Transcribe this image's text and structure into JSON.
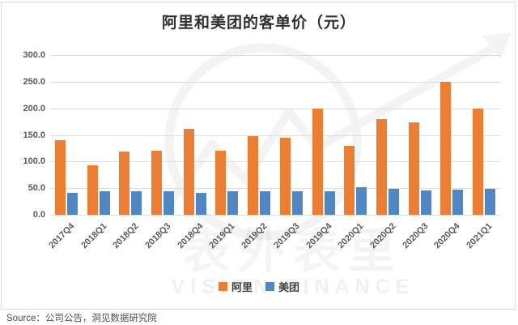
{
  "title": "阿里和美团的客单价（元）",
  "source": "Source：公司公告，洞见数据研究院",
  "watermark": {
    "brand": "表外表里",
    "subtitle": "VISION FINANCE"
  },
  "colors": {
    "ali_orange": "#ED7D31",
    "meituan_blue": "#4E86C6",
    "gridline": "#dcdcdc",
    "axis_text": "#5a5a5a"
  },
  "chart_data": {
    "type": "bar",
    "title": "阿里和美团的客单价（元）",
    "categories": [
      "2017Q4",
      "2018Q1",
      "2018Q2",
      "2018Q3",
      "2018Q4",
      "2019Q1",
      "2019Q2",
      "2019Q3",
      "2019Q4",
      "2020Q1",
      "2020Q2",
      "2020Q3",
      "2020Q4",
      "2021Q1"
    ],
    "series": [
      {
        "name": "阿里",
        "color": "#ED7D31",
        "values": [
          140,
          93,
          119,
          121,
          162,
          121,
          147,
          145,
          200,
          130,
          180,
          173,
          250,
          200
        ]
      },
      {
        "name": "美团",
        "color": "#4E86C6",
        "values": [
          41,
          44,
          44,
          44,
          41,
          44,
          44,
          44,
          44,
          52,
          49,
          46,
          47,
          48
        ]
      }
    ],
    "xlabel": "",
    "ylabel": "",
    "ylim": [
      0,
      300
    ],
    "ytick_step": 50,
    "ytick_decimals": 1,
    "grid": true,
    "legend_position": "bottom"
  }
}
